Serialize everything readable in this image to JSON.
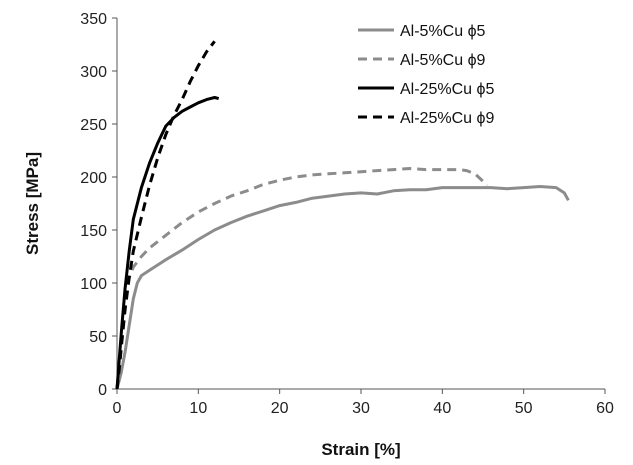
{
  "chart_data": {
    "type": "line",
    "title": "",
    "xlabel": "Strain [%]",
    "ylabel": "Stress  [MPa]",
    "xlim": [
      0,
      60
    ],
    "ylim": [
      0,
      350
    ],
    "x_ticks": [
      0,
      10,
      20,
      30,
      40,
      50,
      60
    ],
    "y_ticks": [
      0,
      50,
      100,
      150,
      200,
      250,
      300,
      350
    ],
    "grid": false,
    "legend_position": "top-right",
    "series": [
      {
        "name": "Al-5%Cu ϕ5",
        "color": "#8c8c8c",
        "style": "solid",
        "points": [
          [
            0,
            0
          ],
          [
            0.5,
            15
          ],
          [
            1,
            35
          ],
          [
            1.5,
            60
          ],
          [
            2,
            85
          ],
          [
            2.5,
            100
          ],
          [
            3,
            107
          ],
          [
            4,
            112
          ],
          [
            6,
            122
          ],
          [
            8,
            131
          ],
          [
            10,
            141
          ],
          [
            12,
            150
          ],
          [
            14,
            157
          ],
          [
            16,
            163
          ],
          [
            18,
            168
          ],
          [
            20,
            173
          ],
          [
            22,
            176
          ],
          [
            24,
            180
          ],
          [
            26,
            182
          ],
          [
            28,
            184
          ],
          [
            30,
            185
          ],
          [
            32,
            184
          ],
          [
            34,
            187
          ],
          [
            36,
            188
          ],
          [
            38,
            188
          ],
          [
            40,
            190
          ],
          [
            42,
            190
          ],
          [
            44,
            190
          ],
          [
            46,
            190
          ],
          [
            48,
            189
          ],
          [
            50,
            190
          ],
          [
            52,
            191
          ],
          [
            54,
            190
          ],
          [
            55,
            185
          ],
          [
            55.5,
            178
          ]
        ]
      },
      {
        "name": "Al-5%Cu ϕ9",
        "color": "#8c8c8c",
        "style": "dashed",
        "points": [
          [
            0,
            0
          ],
          [
            0.5,
            40
          ],
          [
            1,
            80
          ],
          [
            1.5,
            105
          ],
          [
            2,
            115
          ],
          [
            3,
            125
          ],
          [
            4,
            133
          ],
          [
            6,
            145
          ],
          [
            8,
            157
          ],
          [
            10,
            167
          ],
          [
            12,
            175
          ],
          [
            14,
            182
          ],
          [
            16,
            187
          ],
          [
            18,
            193
          ],
          [
            20,
            197
          ],
          [
            22,
            200
          ],
          [
            24,
            202
          ],
          [
            26,
            203
          ],
          [
            28,
            204
          ],
          [
            30,
            205
          ],
          [
            32,
            206
          ],
          [
            34,
            207
          ],
          [
            36,
            208
          ],
          [
            38,
            207
          ],
          [
            40,
            207
          ],
          [
            42,
            207
          ],
          [
            43,
            206
          ],
          [
            44,
            203
          ],
          [
            45,
            196
          ],
          [
            45.5,
            192
          ]
        ]
      },
      {
        "name": "Al-25%Cu ϕ5",
        "color": "#000000",
        "style": "solid",
        "points": [
          [
            0,
            0
          ],
          [
            0.3,
            30
          ],
          [
            0.6,
            60
          ],
          [
            1,
            95
          ],
          [
            1.5,
            130
          ],
          [
            2,
            160
          ],
          [
            3,
            190
          ],
          [
            4,
            213
          ],
          [
            5,
            232
          ],
          [
            6,
            248
          ],
          [
            7,
            256
          ],
          [
            8,
            262
          ],
          [
            9,
            266
          ],
          [
            10,
            270
          ],
          [
            11,
            273
          ],
          [
            12,
            275
          ],
          [
            12.5,
            274
          ]
        ]
      },
      {
        "name": "Al-25%Cu ϕ9",
        "color": "#000000",
        "style": "dashed",
        "points": [
          [
            0,
            0
          ],
          [
            0.3,
            20
          ],
          [
            0.6,
            45
          ],
          [
            1,
            75
          ],
          [
            1.5,
            105
          ],
          [
            2,
            130
          ],
          [
            3,
            162
          ],
          [
            4,
            192
          ],
          [
            5,
            218
          ],
          [
            6,
            240
          ],
          [
            7,
            258
          ],
          [
            8,
            273
          ],
          [
            9,
            290
          ],
          [
            10,
            305
          ],
          [
            11,
            318
          ],
          [
            12,
            328
          ]
        ]
      }
    ]
  }
}
